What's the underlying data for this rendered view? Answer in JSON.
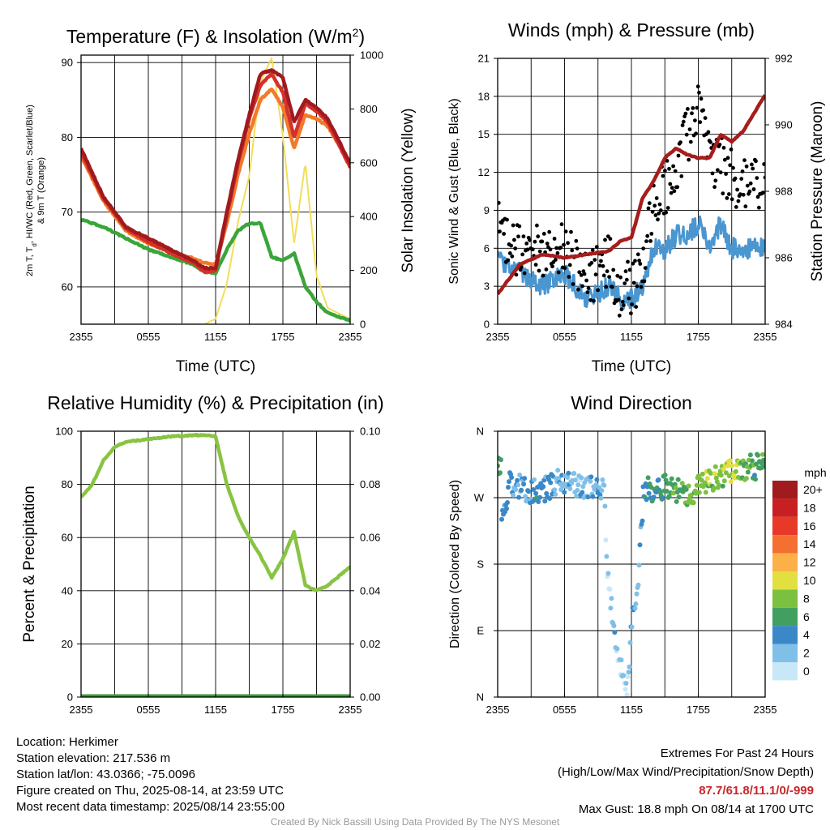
{
  "panels": {
    "temperature": {
      "title_main": "Temperature (F) & Insolation (W/m",
      "title_sup": "2",
      "title_end": ")",
      "left_axis_label": "2m T, T",
      "left_axis_label_sub": "d",
      "left_axis_label_rest": ", HI/WC (Red, Green, Scarlet/Blue)",
      "left_axis_label_line2": "& 9m T (Orange)",
      "right_axis_label": "Solar Insolation (Yellow)",
      "xlabel": "Time (UTC)"
    },
    "winds": {
      "title": "Winds (mph) & Pressure (mb)",
      "left_axis_label": "Sonic Wind & Gust (Blue, Black)",
      "right_axis_label": "Station Pressure (Maroon)",
      "xlabel": "Time (UTC)"
    },
    "humidity": {
      "title": "Relative Humidity (%) & Precipitation (in)",
      "left_axis_label": "Percent & Precipitation"
    },
    "direction": {
      "title": "Wind Direction",
      "left_axis_label": "Direction (Colored By Speed)",
      "legend_title": "mph",
      "legend_labels": [
        "20+",
        "18",
        "16",
        "14",
        "12",
        "10",
        "8",
        "6",
        "4",
        "2",
        "0"
      ]
    }
  },
  "footer": {
    "location": "Location: Herkimer",
    "elevation": "Station elevation: 217.536 m",
    "latlon": "Station lat/lon: 43.0366; -75.0096",
    "created": "Figure created on Thu, 2025-08-14, at 23:59 UTC",
    "recent": "Most recent data timestamp: 2025/08/14 23:55:00",
    "extremes_title": "Extremes For Past 24 Hours",
    "extremes_subtitle": "(High/Low/Max Wind/Precipitation/Snow Depth)",
    "extremes_values": "87.7/61.8/11.1/0/-999",
    "max_gust": "Max Gust: 18.8 mph On 08/14 at 1700 UTC",
    "credit": "Created By Nick Bassill Using Data Provided By The NYS Mesonet"
  },
  "colors": {
    "temperature_red": "#a01a1e",
    "heat_index_scarlet": "#d6302a",
    "dewpoint_green": "#3aa53a",
    "temp_9m_orange": "#f07a2a",
    "insolation_yellow": "#f2de5a",
    "wind_blue": "#4a96d0",
    "gust_black": "#000000",
    "pressure_maroon": "#a81c1c",
    "rh_green": "#88c441",
    "precip_green": "#3a9a3a",
    "direction_scale": [
      "#c8e8f8",
      "#80c0e8",
      "#3a88c8",
      "#41a060",
      "#7cc040",
      "#e2e040",
      "#fcb048",
      "#f47030",
      "#e83828",
      "#c82022",
      "#a01a1e"
    ]
  },
  "chart_data": [
    {
      "type": "line",
      "title": "Temperature (F) & Insolation (W/m2)",
      "xlabel": "Time (UTC)",
      "ylabel": "2m T, Td, HI/WC (Red, Green, Scarlet/Blue) & 9m T (Orange)",
      "y2label": "Solar Insolation (Yellow)",
      "x_ticks": [
        "2355",
        "0555",
        "1155",
        "1755",
        "2355"
      ],
      "x": [
        "2355",
        "0155",
        "0355",
        "0555",
        "0755",
        "0955",
        "1055",
        "1155",
        "1255",
        "1355",
        "1455",
        "1555",
        "1655",
        "1755",
        "1855",
        "1955",
        "2055",
        "2155",
        "2355"
      ],
      "ylim": [
        55,
        91
      ],
      "yticks": [
        60,
        70,
        80,
        90
      ],
      "y2lim": [
        0,
        1000
      ],
      "y2ticks": [
        0,
        200,
        400,
        600,
        800,
        1000
      ],
      "series": [
        {
          "name": "2m T",
          "color": "Red",
          "values": [
            78.5,
            72.0,
            68.0,
            66.5,
            65.0,
            63.5,
            62.5,
            62.5,
            70.0,
            77.0,
            83.0,
            88.5,
            89.0,
            88.0,
            82.0,
            85.0,
            84.0,
            82.5,
            76.5
          ]
        },
        {
          "name": "HI/WC",
          "color": "Scarlet",
          "values": [
            78.0,
            71.8,
            67.8,
            66.0,
            64.5,
            63.2,
            62.0,
            62.2,
            69.5,
            76.5,
            82.5,
            87.0,
            88.5,
            86.0,
            80.0,
            84.5,
            83.5,
            82.0,
            76.0
          ]
        },
        {
          "name": "9m T",
          "color": "Orange",
          "values": [
            77.5,
            71.5,
            67.5,
            65.8,
            64.8,
            63.8,
            63.2,
            63.0,
            68.5,
            75.0,
            80.5,
            85.0,
            86.5,
            84.0,
            78.5,
            83.0,
            82.5,
            81.5,
            76.5
          ]
        },
        {
          "name": "Td",
          "color": "Green",
          "values": [
            69.0,
            68.0,
            66.5,
            65.0,
            64.0,
            63.0,
            62.0,
            61.8,
            65.0,
            67.5,
            68.5,
            68.5,
            64.0,
            63.5,
            64.5,
            60.0,
            58.0,
            56.5,
            55.5
          ]
        },
        {
          "name": "Solar Insolation",
          "color": "Yellow",
          "axis": "right",
          "values": [
            0,
            0,
            0,
            0,
            0,
            0,
            0,
            20,
            150,
            380,
            550,
            900,
            990,
            700,
            300,
            600,
            180,
            60,
            20
          ]
        }
      ]
    },
    {
      "type": "line",
      "title": "Winds (mph) & Pressure (mb)",
      "xlabel": "Time (UTC)",
      "ylabel": "Sonic Wind & Gust (Blue, Black)",
      "y2label": "Station Pressure (Maroon)",
      "x_ticks": [
        "2355",
        "0555",
        "1155",
        "1755",
        "2355"
      ],
      "x": [
        "2355",
        "0155",
        "0355",
        "0555",
        "0755",
        "0955",
        "1055",
        "1155",
        "1255",
        "1355",
        "1455",
        "1555",
        "1655",
        "1755",
        "1855",
        "1955",
        "2055",
        "2155",
        "2355"
      ],
      "ylim": [
        0,
        21
      ],
      "yticks": [
        0,
        3,
        6,
        9,
        12,
        15,
        18,
        21
      ],
      "y2lim": [
        984,
        992
      ],
      "y2ticks": [
        984,
        986,
        988,
        990,
        992
      ],
      "series": [
        {
          "name": "Sonic Wind",
          "color": "Blue",
          "values": [
            5,
            4,
            3,
            4,
            2,
            3,
            2,
            2,
            3,
            6,
            6,
            7,
            7,
            8,
            6,
            8,
            6,
            6,
            6
          ]
        },
        {
          "name": "Gust",
          "color": "Black",
          "values": [
            8,
            6,
            6,
            6,
            4,
            5,
            3,
            3,
            4,
            10,
            11,
            13,
            15,
            18,
            13,
            13,
            12,
            11,
            11
          ]
        },
        {
          "name": "Station Pressure",
          "color": "Maroon",
          "axis": "right",
          "values": [
            984.9,
            985.8,
            986.1,
            986.0,
            986.1,
            986.2,
            986.5,
            986.6,
            987.8,
            988.3,
            989.0,
            989.3,
            989.1,
            989.0,
            989.0,
            989.7,
            989.5,
            989.8,
            990.9
          ]
        }
      ]
    },
    {
      "type": "line",
      "title": "Relative Humidity (%) & Precipitation (in)",
      "ylabel": "Percent & Precipitation",
      "x_ticks": [
        "2355",
        "0555",
        "1155",
        "1755",
        "2355"
      ],
      "x": [
        "2355",
        "0055",
        "0155",
        "0255",
        "0355",
        "0555",
        "0755",
        "0955",
        "1055",
        "1155",
        "1255",
        "1355",
        "1455",
        "1555",
        "1655",
        "1755",
        "1855",
        "1955",
        "2055",
        "2155",
        "2355"
      ],
      "ylim": [
        0,
        100
      ],
      "yticks": [
        0,
        20,
        40,
        60,
        80,
        100
      ],
      "y2lim": [
        0,
        0.1
      ],
      "y2ticks": [
        0.0,
        0.02,
        0.04,
        0.06,
        0.08,
        0.1
      ],
      "series": [
        {
          "name": "Relative Humidity",
          "color": "Green",
          "values": [
            75,
            80,
            89,
            94,
            96,
            97,
            98,
            98.5,
            98.5,
            98,
            80,
            68,
            60,
            53,
            45,
            52,
            62,
            42,
            40,
            42,
            49
          ]
        },
        {
          "name": "Precipitation",
          "color": "Dark Green",
          "axis": "right",
          "values": [
            0,
            0,
            0,
            0,
            0,
            0,
            0,
            0,
            0,
            0,
            0,
            0,
            0,
            0,
            0,
            0,
            0,
            0,
            0,
            0,
            0
          ]
        }
      ]
    },
    {
      "type": "scatter",
      "title": "Wind Direction",
      "ylabel": "Direction (Colored By Speed)",
      "x_ticks": [
        "2355",
        "0555",
        "1155",
        "1755",
        "2355"
      ],
      "y_ticks": [
        "N",
        "E",
        "S",
        "W",
        "N"
      ],
      "ylim": [
        0,
        360
      ],
      "legend_title": "mph",
      "points": [
        {
          "x": "0015",
          "dir": 245,
          "speed": 4
        },
        {
          "x": "0035",
          "dir": 255,
          "speed": 3
        },
        {
          "x": "0100",
          "dir": 290,
          "speed": 3
        },
        {
          "x": "0200",
          "dir": 283,
          "speed": 3
        },
        {
          "x": "0330",
          "dir": 277,
          "speed": 4
        },
        {
          "x": "0530",
          "dir": 292,
          "speed": 3
        },
        {
          "x": "0700",
          "dir": 285,
          "speed": 2
        },
        {
          "x": "0930",
          "dir": 285,
          "speed": 3
        },
        {
          "x": "0940",
          "dir": 195,
          "speed": 1
        },
        {
          "x": "1030",
          "dir": 60,
          "speed": 2
        },
        {
          "x": "1130",
          "dir": 10,
          "speed": 1
        },
        {
          "x": "1200",
          "dir": 110,
          "speed": 3
        },
        {
          "x": "1230",
          "dir": 150,
          "speed": 3
        },
        {
          "x": "1300",
          "dir": 280,
          "speed": 4
        },
        {
          "x": "1500",
          "dir": 285,
          "speed": 6
        },
        {
          "x": "1700",
          "dir": 275,
          "speed": 7
        },
        {
          "x": "1800",
          "dir": 285,
          "speed": 8
        },
        {
          "x": "2000",
          "dir": 300,
          "speed": 8
        },
        {
          "x": "2100",
          "dir": 310,
          "speed": 9
        },
        {
          "x": "2300",
          "dir": 312,
          "speed": 6
        }
      ]
    }
  ]
}
